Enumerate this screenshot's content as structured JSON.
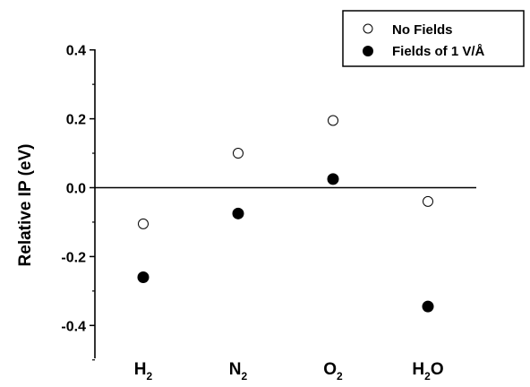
{
  "chart_data": {
    "type": "scatter",
    "title": "",
    "xlabel": "",
    "ylabel": "Relative IP (eV)",
    "ylim": [
      -0.5,
      0.4
    ],
    "yticks": [
      "0.4",
      "0.2",
      "0.0",
      "-0.2",
      "-0.4"
    ],
    "ytick_values": [
      0.4,
      0.2,
      0.0,
      -0.2,
      -0.4
    ],
    "categories": [
      {
        "main": "H",
        "sub": "2",
        "tail": ""
      },
      {
        "main": "N",
        "sub": "2",
        "tail": ""
      },
      {
        "main": "O",
        "sub": "2",
        "tail": ""
      },
      {
        "main": "H",
        "sub": "2",
        "tail": "O"
      }
    ],
    "series": [
      {
        "name": "No Fields",
        "marker": "open-circle",
        "values": [
          -0.105,
          0.1,
          0.195,
          -0.04
        ]
      },
      {
        "name": "Fields of 1 V/Å",
        "marker": "filled-circle",
        "values": [
          -0.26,
          -0.075,
          0.025,
          -0.345
        ]
      }
    ],
    "zero_line": true,
    "legend_position": "top-right",
    "grid": false
  }
}
